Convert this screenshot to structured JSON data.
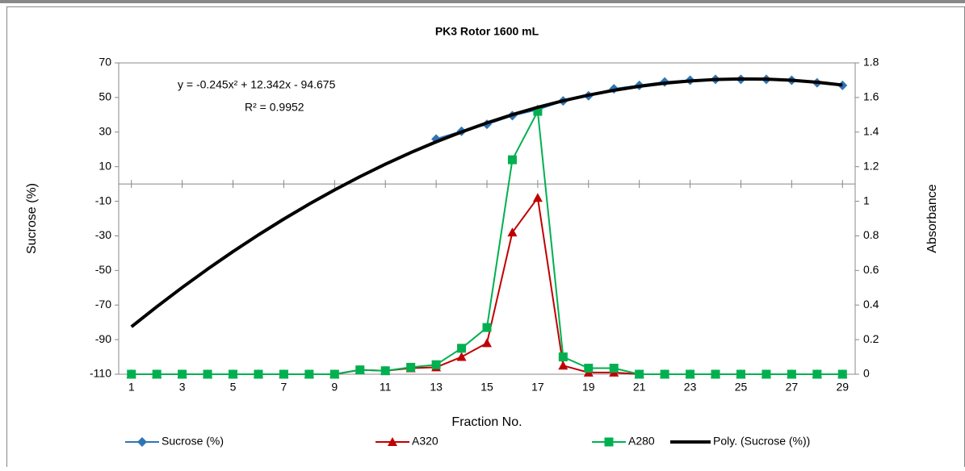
{
  "chart_data": {
    "type": "line",
    "title": "PK3 Rotor 1600 mL",
    "x_label": "Fraction No.",
    "y_label": "Sucrose (%)",
    "y2_label": "Absorbance",
    "annotations": [
      "y = -0.245x² + 12.342x - 94.675",
      "R² = 0.9952"
    ],
    "x": [
      1,
      2,
      3,
      4,
      5,
      6,
      7,
      8,
      9,
      10,
      11,
      12,
      13,
      14,
      15,
      16,
      17,
      18,
      19,
      20,
      21,
      22,
      23,
      24,
      25,
      26,
      27,
      28,
      29
    ],
    "xlim": [
      0.5,
      29.5
    ],
    "xticks": [
      1,
      3,
      5,
      7,
      9,
      11,
      13,
      15,
      17,
      19,
      21,
      23,
      25,
      27,
      29
    ],
    "ylim": [
      -110,
      70
    ],
    "yticks": [
      -110,
      -90,
      -70,
      -50,
      -30,
      -10,
      10,
      30,
      50,
      70
    ],
    "y2lim": [
      0,
      1.8
    ],
    "y2ticks": [
      0,
      0.2,
      0.4,
      0.6,
      0.8,
      1,
      1.2,
      1.4,
      1.6,
      1.8
    ],
    "x_axis_crosses": 0,
    "grid": false,
    "legend": "bottom",
    "series": [
      {
        "name": "Sucrose (%)",
        "color": "#2e75b6",
        "marker": "diamond",
        "axis": "y",
        "values": [
          null,
          null,
          null,
          null,
          null,
          null,
          null,
          null,
          null,
          null,
          null,
          null,
          26,
          30.5,
          34.5,
          39.5,
          43,
          48,
          51,
          55,
          57,
          59,
          60,
          60.5,
          60.5,
          60.5,
          60,
          58.5,
          57
        ]
      },
      {
        "name": "A320",
        "color": "#c00000",
        "marker": "triangle",
        "axis": "y2",
        "values": [
          0,
          0,
          0,
          0,
          0,
          0,
          0,
          0,
          0,
          0.025,
          0.02,
          0.035,
          0.04,
          0.1,
          0.18,
          0.82,
          1.02,
          0.05,
          0.01,
          0.01,
          0,
          0,
          0,
          0,
          0,
          0,
          0,
          0,
          0
        ]
      },
      {
        "name": "A280",
        "color": "#00b050",
        "marker": "square",
        "axis": "y2",
        "values": [
          0,
          0,
          0,
          0,
          0,
          0,
          0,
          0,
          0,
          0.025,
          0.02,
          0.04,
          0.055,
          0.15,
          0.27,
          1.24,
          1.52,
          0.1,
          0.035,
          0.035,
          0,
          0,
          0,
          0,
          0,
          0,
          0,
          0,
          0
        ]
      },
      {
        "name": "Poly. (Sucrose (%))",
        "color": "#000000",
        "marker": "none",
        "axis": "y",
        "width": 4,
        "values": [
          -82.58,
          -70.97,
          -59.85,
          -49.23,
          -39.09,
          -29.44,
          -20.29,
          -11.62,
          -3.44,
          4.25,
          11.44,
          18.15,
          24.37,
          30.09,
          35.33,
          40.08,
          44.33,
          48.1,
          51.38,
          54.17,
          56.46,
          58.27,
          59.59,
          60.41,
          60.75,
          60.6,
          59.95,
          58.82,
          57.2
        ]
      }
    ]
  }
}
